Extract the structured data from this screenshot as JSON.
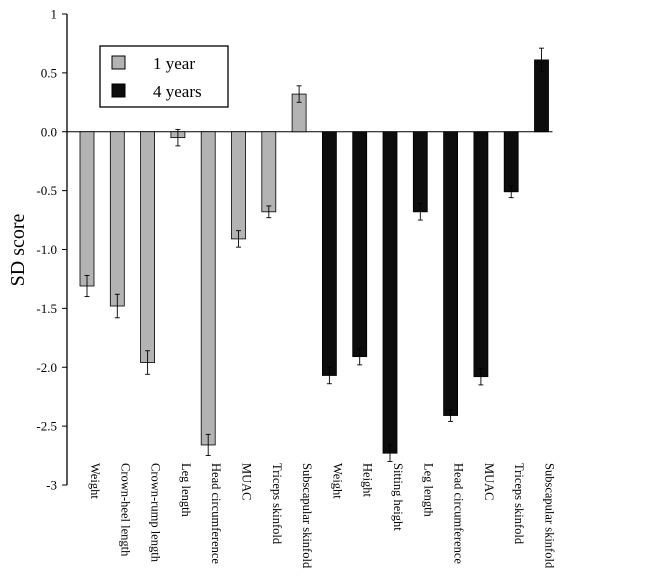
{
  "chart_data": {
    "type": "bar",
    "ylabel": "SD score",
    "ylim": [
      -3,
      1
    ],
    "yticks": [
      {
        "value": 1,
        "label": "1"
      },
      {
        "value": 0.5,
        "label": "0.5"
      },
      {
        "value": 0,
        "label": "0.0"
      },
      {
        "value": -0.5,
        "label": "-0.5"
      },
      {
        "value": -1,
        "label": "-1.0"
      },
      {
        "value": -1.5,
        "label": "-1.5"
      },
      {
        "value": -2,
        "label": "-2.0"
      },
      {
        "value": -2.5,
        "label": "-2.5"
      },
      {
        "value": -3,
        "label": "-3"
      }
    ],
    "grid": false,
    "legend_position": "top-left",
    "series": [
      {
        "name": "1 year",
        "color": "#b3b3b3",
        "categories": [
          "Weight",
          "Crown-heel length",
          "Crown-rump length",
          "Leg length",
          "Head circumference",
          "MUAC",
          "Triceps skinfold",
          "Subscapular skinfold"
        ],
        "values": [
          -1.31,
          -1.48,
          -1.96,
          -0.05,
          -2.66,
          -0.91,
          -0.68,
          0.32
        ],
        "errors": [
          0.09,
          0.1,
          0.1,
          0.07,
          0.09,
          0.07,
          0.05,
          0.07
        ]
      },
      {
        "name": "4 years",
        "color": "#0d0d0d",
        "categories": [
          "Weight",
          "Height",
          "Sitting height",
          "Leg length",
          "Head circumference",
          "MUAC",
          "Triceps skinfold",
          "Subscapular skinfold"
        ],
        "values": [
          -2.07,
          -1.91,
          -2.73,
          -0.68,
          -2.41,
          -2.08,
          -0.51,
          0.61
        ],
        "errors": [
          0.07,
          0.07,
          0.07,
          0.07,
          0.05,
          0.07,
          0.05,
          0.1
        ]
      }
    ]
  }
}
